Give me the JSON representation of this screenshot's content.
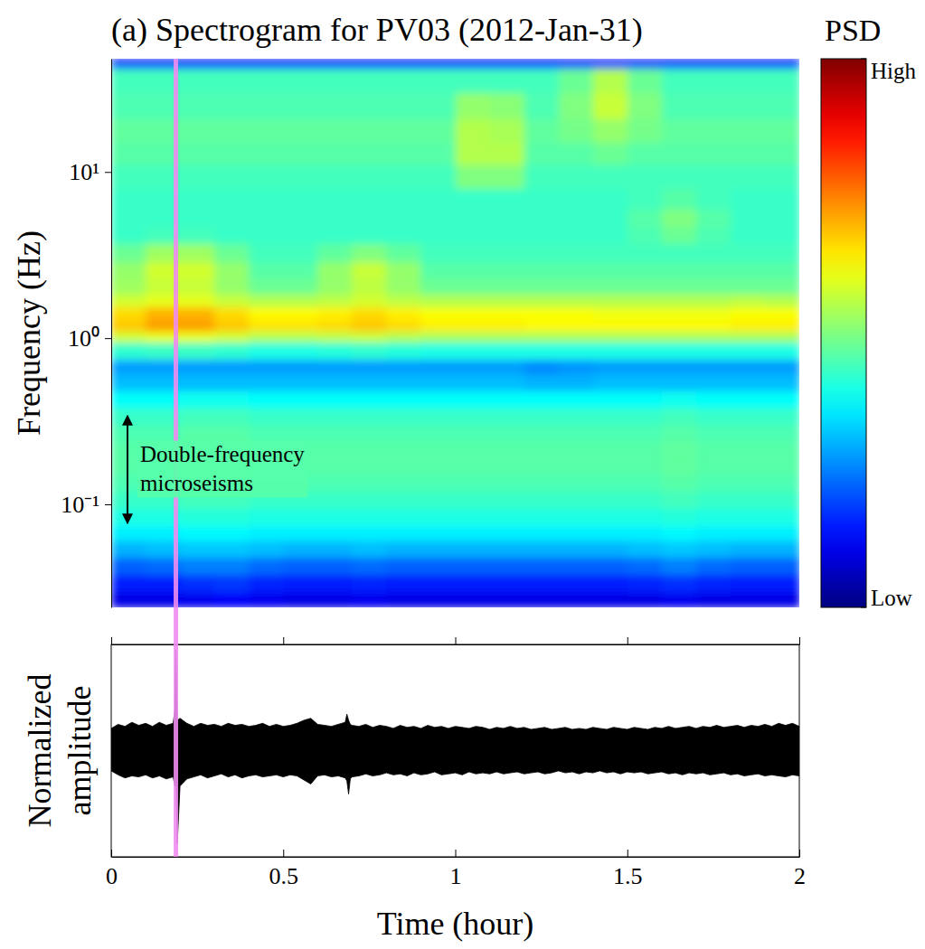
{
  "chart_data": [
    {
      "type": "heatmap",
      "title": "(a) Spectrogram for PV03 (2012-Jan-31)",
      "y_label": "Frequency (Hz)",
      "log": "y",
      "tick_labels": "y",
      "xlim": [
        0,
        2
      ],
      "ylim": [
        0.024,
        48
      ],
      "yticks": [
        {
          "value": 0.1,
          "label": "10⁻¹"
        },
        {
          "value": 1,
          "label": "10⁰"
        },
        {
          "value": 10,
          "label": "10¹"
        }
      ],
      "time_edges": [
        0,
        0.1,
        0.2,
        0.3,
        0.4,
        0.5,
        0.6,
        0.7,
        0.8,
        0.9,
        1.0,
        1.1,
        1.2,
        1.3,
        1.4,
        1.5,
        1.6,
        1.7,
        1.8,
        1.9,
        2.0
      ],
      "frequency_edges": [
        0.024,
        0.03,
        0.038,
        0.048,
        0.06,
        0.075,
        0.095,
        0.12,
        0.15,
        0.19,
        0.24,
        0.3,
        0.38,
        0.48,
        0.6,
        0.75,
        0.95,
        1.1,
        1.3,
        1.55,
        1.85,
        2.3,
        2.9,
        3.7,
        4.7,
        6,
        8,
        11,
        15,
        21,
        30,
        42,
        48
      ],
      "psd": [
        [
          0.1,
          0.1,
          0.11,
          0.12,
          0.11,
          0.1,
          0.1,
          0.11,
          0.1,
          0.1,
          0.1,
          0.1,
          0.1,
          0.1,
          0.1,
          0.1,
          0.11,
          0.1,
          0.1,
          0.1
        ],
        [
          0.15,
          0.15,
          0.17,
          0.18,
          0.16,
          0.15,
          0.15,
          0.16,
          0.15,
          0.15,
          0.15,
          0.15,
          0.15,
          0.15,
          0.15,
          0.16,
          0.17,
          0.16,
          0.15,
          0.15
        ],
        [
          0.22,
          0.23,
          0.25,
          0.25,
          0.23,
          0.22,
          0.22,
          0.23,
          0.22,
          0.22,
          0.22,
          0.22,
          0.22,
          0.22,
          0.22,
          0.23,
          0.25,
          0.23,
          0.22,
          0.22
        ],
        [
          0.3,
          0.31,
          0.32,
          0.32,
          0.31,
          0.3,
          0.3,
          0.31,
          0.3,
          0.3,
          0.3,
          0.3,
          0.3,
          0.3,
          0.3,
          0.31,
          0.32,
          0.31,
          0.3,
          0.3
        ],
        [
          0.36,
          0.36,
          0.37,
          0.37,
          0.36,
          0.36,
          0.36,
          0.36,
          0.36,
          0.36,
          0.36,
          0.36,
          0.36,
          0.36,
          0.36,
          0.36,
          0.37,
          0.36,
          0.36,
          0.36
        ],
        [
          0.4,
          0.4,
          0.41,
          0.41,
          0.4,
          0.4,
          0.4,
          0.4,
          0.4,
          0.4,
          0.4,
          0.4,
          0.4,
          0.4,
          0.4,
          0.4,
          0.41,
          0.4,
          0.4,
          0.4
        ],
        [
          0.43,
          0.43,
          0.44,
          0.44,
          0.43,
          0.43,
          0.43,
          0.43,
          0.43,
          0.43,
          0.43,
          0.43,
          0.43,
          0.43,
          0.43,
          0.43,
          0.44,
          0.43,
          0.43,
          0.43
        ],
        [
          0.45,
          0.45,
          0.46,
          0.46,
          0.45,
          0.45,
          0.45,
          0.45,
          0.45,
          0.45,
          0.45,
          0.45,
          0.45,
          0.45,
          0.45,
          0.45,
          0.46,
          0.45,
          0.45,
          0.45
        ],
        [
          0.46,
          0.46,
          0.47,
          0.47,
          0.46,
          0.46,
          0.46,
          0.46,
          0.46,
          0.46,
          0.46,
          0.46,
          0.46,
          0.46,
          0.46,
          0.46,
          0.47,
          0.46,
          0.46,
          0.46
        ],
        [
          0.46,
          0.46,
          0.47,
          0.47,
          0.46,
          0.46,
          0.46,
          0.46,
          0.46,
          0.46,
          0.46,
          0.46,
          0.46,
          0.46,
          0.46,
          0.46,
          0.47,
          0.46,
          0.46,
          0.46
        ],
        [
          0.45,
          0.45,
          0.46,
          0.46,
          0.45,
          0.45,
          0.45,
          0.45,
          0.45,
          0.45,
          0.45,
          0.45,
          0.45,
          0.45,
          0.45,
          0.45,
          0.46,
          0.45,
          0.45,
          0.45
        ],
        [
          0.43,
          0.43,
          0.44,
          0.44,
          0.43,
          0.43,
          0.43,
          0.43,
          0.43,
          0.43,
          0.43,
          0.43,
          0.43,
          0.43,
          0.43,
          0.43,
          0.44,
          0.43,
          0.43,
          0.43
        ],
        [
          0.38,
          0.38,
          0.39,
          0.39,
          0.38,
          0.38,
          0.38,
          0.38,
          0.38,
          0.38,
          0.38,
          0.38,
          0.38,
          0.38,
          0.38,
          0.38,
          0.39,
          0.38,
          0.38,
          0.38
        ],
        [
          0.31,
          0.31,
          0.31,
          0.31,
          0.31,
          0.31,
          0.31,
          0.31,
          0.31,
          0.31,
          0.31,
          0.31,
          0.3,
          0.3,
          0.31,
          0.31,
          0.31,
          0.31,
          0.31,
          0.31
        ],
        [
          0.28,
          0.28,
          0.28,
          0.28,
          0.28,
          0.28,
          0.28,
          0.28,
          0.28,
          0.28,
          0.28,
          0.28,
          0.26,
          0.27,
          0.28,
          0.28,
          0.28,
          0.28,
          0.28,
          0.28
        ],
        [
          0.42,
          0.43,
          0.43,
          0.42,
          0.4,
          0.4,
          0.41,
          0.42,
          0.41,
          0.4,
          0.4,
          0.4,
          0.4,
          0.4,
          0.4,
          0.4,
          0.4,
          0.4,
          0.4,
          0.4
        ],
        [
          0.58,
          0.6,
          0.6,
          0.58,
          0.55,
          0.55,
          0.56,
          0.57,
          0.55,
          0.54,
          0.54,
          0.54,
          0.54,
          0.54,
          0.54,
          0.54,
          0.54,
          0.54,
          0.54,
          0.54
        ],
        [
          0.68,
          0.72,
          0.72,
          0.68,
          0.65,
          0.65,
          0.66,
          0.68,
          0.66,
          0.64,
          0.64,
          0.64,
          0.63,
          0.63,
          0.63,
          0.63,
          0.63,
          0.63,
          0.64,
          0.64
        ],
        [
          0.66,
          0.7,
          0.7,
          0.66,
          0.63,
          0.63,
          0.64,
          0.66,
          0.64,
          0.62,
          0.62,
          0.62,
          0.62,
          0.62,
          0.61,
          0.61,
          0.61,
          0.61,
          0.62,
          0.62
        ],
        [
          0.58,
          0.6,
          0.6,
          0.57,
          0.55,
          0.55,
          0.56,
          0.58,
          0.56,
          0.55,
          0.55,
          0.55,
          0.55,
          0.55,
          0.55,
          0.55,
          0.55,
          0.55,
          0.56,
          0.55
        ],
        [
          0.53,
          0.57,
          0.57,
          0.52,
          0.48,
          0.48,
          0.52,
          0.56,
          0.52,
          0.48,
          0.48,
          0.48,
          0.48,
          0.48,
          0.48,
          0.48,
          0.48,
          0.48,
          0.48,
          0.48
        ],
        [
          0.52,
          0.58,
          0.58,
          0.52,
          0.46,
          0.46,
          0.52,
          0.57,
          0.52,
          0.46,
          0.46,
          0.46,
          0.46,
          0.46,
          0.46,
          0.46,
          0.46,
          0.46,
          0.46,
          0.46
        ],
        [
          0.48,
          0.53,
          0.53,
          0.48,
          0.44,
          0.44,
          0.47,
          0.5,
          0.47,
          0.44,
          0.44,
          0.44,
          0.44,
          0.44,
          0.44,
          0.44,
          0.44,
          0.44,
          0.44,
          0.44
        ],
        [
          0.43,
          0.44,
          0.44,
          0.43,
          0.43,
          0.43,
          0.43,
          0.43,
          0.43,
          0.43,
          0.43,
          0.43,
          0.43,
          0.43,
          0.43,
          0.45,
          0.48,
          0.45,
          0.43,
          0.43
        ],
        [
          0.43,
          0.43,
          0.43,
          0.43,
          0.43,
          0.43,
          0.43,
          0.43,
          0.43,
          0.43,
          0.43,
          0.43,
          0.43,
          0.43,
          0.43,
          0.46,
          0.5,
          0.46,
          0.43,
          0.43
        ],
        [
          0.43,
          0.43,
          0.43,
          0.43,
          0.43,
          0.43,
          0.43,
          0.43,
          0.43,
          0.43,
          0.43,
          0.43,
          0.43,
          0.43,
          0.43,
          0.44,
          0.46,
          0.44,
          0.43,
          0.43
        ],
        [
          0.44,
          0.44,
          0.44,
          0.44,
          0.44,
          0.44,
          0.44,
          0.44,
          0.44,
          0.44,
          0.5,
          0.5,
          0.44,
          0.44,
          0.44,
          0.44,
          0.44,
          0.44,
          0.44,
          0.44
        ],
        [
          0.46,
          0.46,
          0.46,
          0.46,
          0.46,
          0.46,
          0.46,
          0.46,
          0.46,
          0.46,
          0.55,
          0.55,
          0.46,
          0.46,
          0.48,
          0.46,
          0.46,
          0.46,
          0.46,
          0.46
        ],
        [
          0.47,
          0.47,
          0.47,
          0.47,
          0.47,
          0.47,
          0.47,
          0.47,
          0.47,
          0.47,
          0.55,
          0.54,
          0.47,
          0.49,
          0.52,
          0.49,
          0.47,
          0.47,
          0.47,
          0.47
        ],
        [
          0.45,
          0.45,
          0.45,
          0.45,
          0.45,
          0.45,
          0.45,
          0.45,
          0.45,
          0.45,
          0.52,
          0.51,
          0.45,
          0.5,
          0.57,
          0.5,
          0.45,
          0.45,
          0.45,
          0.45
        ],
        [
          0.44,
          0.44,
          0.44,
          0.44,
          0.44,
          0.44,
          0.44,
          0.44,
          0.44,
          0.44,
          0.44,
          0.44,
          0.44,
          0.48,
          0.55,
          0.48,
          0.44,
          0.44,
          0.44,
          0.44
        ],
        [
          0.15,
          0.15,
          0.15,
          0.15,
          0.15,
          0.15,
          0.15,
          0.15,
          0.15,
          0.15,
          0.15,
          0.15,
          0.15,
          0.15,
          0.15,
          0.15,
          0.15,
          0.15,
          0.15,
          0.15
        ]
      ],
      "colorbar": {
        "title": "PSD",
        "range": [
          0,
          1
        ],
        "ticks": [
          {
            "value": 0,
            "label": "Low"
          },
          {
            "value": 1,
            "label": "High"
          }
        ]
      },
      "annotations": [
        {
          "text": "Double-frequency microseisms",
          "frequency_range": [
            0.075,
            0.35
          ]
        }
      ],
      "highlight_time": 0.188
    },
    {
      "type": "area",
      "x_label": "Time (hour)",
      "y_label": "Normalized amplitude",
      "tick_labels": "x",
      "color": "#000000",
      "xlim": [
        0,
        2
      ],
      "xticks": [
        0,
        0.5,
        1,
        1.5,
        2
      ],
      "ylim": [
        -1.05,
        1.05
      ],
      "x": [
        0.0,
        0.02,
        0.04,
        0.06,
        0.08,
        0.1,
        0.12,
        0.14,
        0.16,
        0.18,
        0.185,
        0.188,
        0.192,
        0.2,
        0.22,
        0.24,
        0.26,
        0.28,
        0.3,
        0.32,
        0.34,
        0.36,
        0.38,
        0.4,
        0.42,
        0.44,
        0.46,
        0.48,
        0.5,
        0.52,
        0.54,
        0.56,
        0.58,
        0.6,
        0.62,
        0.64,
        0.66,
        0.68,
        0.685,
        0.69,
        0.695,
        0.7,
        0.72,
        0.74,
        0.76,
        0.78,
        0.8,
        0.82,
        0.84,
        0.86,
        0.88,
        0.9,
        0.92,
        0.94,
        0.96,
        0.98,
        1.0,
        1.02,
        1.04,
        1.06,
        1.08,
        1.1,
        1.12,
        1.14,
        1.16,
        1.18,
        1.2,
        1.22,
        1.24,
        1.26,
        1.28,
        1.3,
        1.32,
        1.34,
        1.36,
        1.38,
        1.4,
        1.42,
        1.44,
        1.46,
        1.48,
        1.5,
        1.52,
        1.54,
        1.56,
        1.58,
        1.6,
        1.62,
        1.64,
        1.66,
        1.68,
        1.7,
        1.72,
        1.74,
        1.76,
        1.78,
        1.8,
        1.82,
        1.84,
        1.86,
        1.88,
        1.9,
        1.92,
        1.94,
        1.96,
        1.98,
        2.0
      ],
      "upper": [
        0.22,
        0.26,
        0.24,
        0.28,
        0.25,
        0.27,
        0.24,
        0.28,
        0.25,
        0.27,
        0.4,
        1.0,
        0.3,
        0.32,
        0.27,
        0.24,
        0.27,
        0.25,
        0.26,
        0.24,
        0.27,
        0.25,
        0.26,
        0.24,
        0.25,
        0.27,
        0.24,
        0.26,
        0.24,
        0.25,
        0.27,
        0.3,
        0.32,
        0.26,
        0.25,
        0.24,
        0.26,
        0.28,
        0.36,
        0.3,
        0.26,
        0.25,
        0.24,
        0.26,
        0.23,
        0.25,
        0.24,
        0.22,
        0.25,
        0.23,
        0.24,
        0.22,
        0.25,
        0.23,
        0.24,
        0.22,
        0.24,
        0.23,
        0.22,
        0.24,
        0.23,
        0.21,
        0.23,
        0.22,
        0.24,
        0.22,
        0.23,
        0.21,
        0.22,
        0.23,
        0.21,
        0.22,
        0.23,
        0.21,
        0.22,
        0.21,
        0.23,
        0.22,
        0.21,
        0.23,
        0.22,
        0.21,
        0.23,
        0.22,
        0.21,
        0.23,
        0.22,
        0.24,
        0.22,
        0.23,
        0.24,
        0.22,
        0.24,
        0.23,
        0.25,
        0.23,
        0.24,
        0.25,
        0.23,
        0.25,
        0.24,
        0.26,
        0.24,
        0.27,
        0.25,
        0.27,
        0.24
      ],
      "lower": [
        -0.2,
        -0.24,
        -0.27,
        -0.25,
        -0.26,
        -0.24,
        -0.27,
        -0.25,
        -0.28,
        -0.26,
        -0.35,
        -0.3,
        -0.92,
        -0.35,
        -0.28,
        -0.26,
        -0.24,
        -0.27,
        -0.25,
        -0.23,
        -0.26,
        -0.24,
        -0.27,
        -0.25,
        -0.24,
        -0.26,
        -0.25,
        -0.24,
        -0.26,
        -0.24,
        -0.25,
        -0.29,
        -0.33,
        -0.25,
        -0.24,
        -0.26,
        -0.25,
        -0.27,
        -0.3,
        -0.43,
        -0.28,
        -0.26,
        -0.25,
        -0.23,
        -0.25,
        -0.24,
        -0.22,
        -0.24,
        -0.23,
        -0.25,
        -0.22,
        -0.24,
        -0.23,
        -0.21,
        -0.24,
        -0.23,
        -0.22,
        -0.24,
        -0.21,
        -0.23,
        -0.22,
        -0.23,
        -0.21,
        -0.23,
        -0.22,
        -0.21,
        -0.23,
        -0.22,
        -0.21,
        -0.23,
        -0.22,
        -0.2,
        -0.22,
        -0.21,
        -0.23,
        -0.21,
        -0.22,
        -0.2,
        -0.22,
        -0.21,
        -0.23,
        -0.21,
        -0.22,
        -0.21,
        -0.23,
        -0.22,
        -0.21,
        -0.23,
        -0.22,
        -0.24,
        -0.22,
        -0.23,
        -0.22,
        -0.24,
        -0.23,
        -0.22,
        -0.24,
        -0.23,
        -0.25,
        -0.24,
        -0.23,
        -0.25,
        -0.24,
        -0.25,
        -0.26,
        -0.24,
        -0.25
      ]
    }
  ]
}
